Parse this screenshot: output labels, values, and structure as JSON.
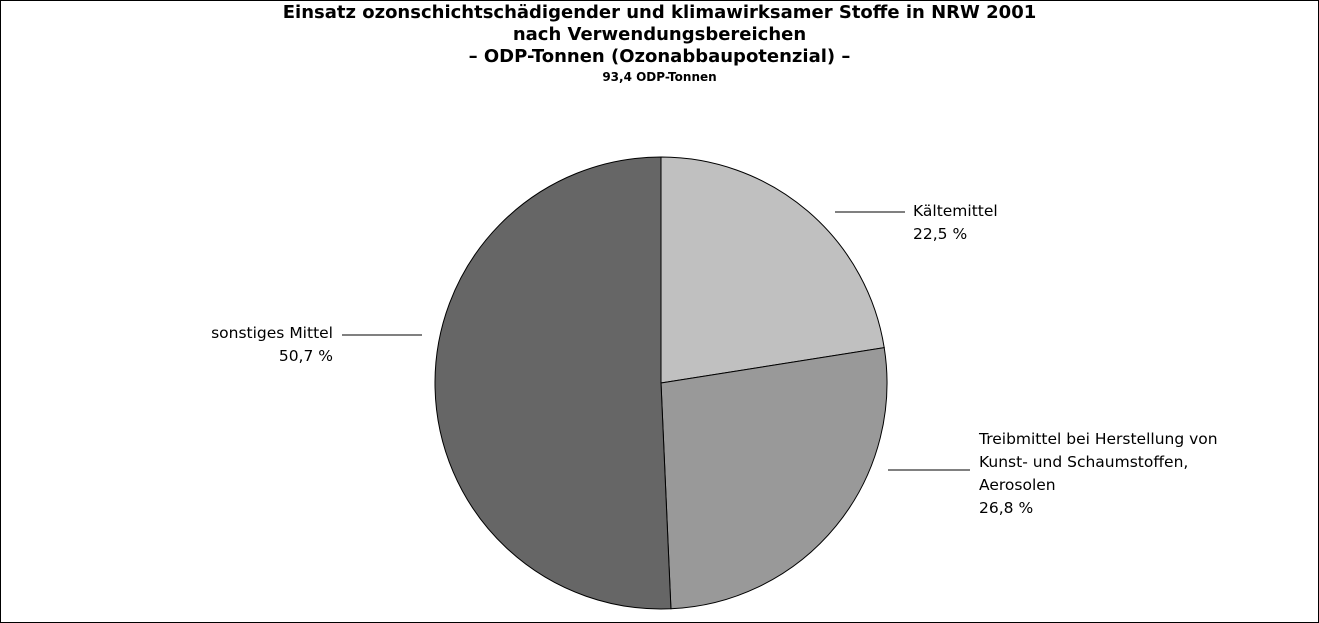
{
  "chart_data": {
    "type": "pie",
    "title": [
      "Einsatz ozonschichtschädigender und klimawirksamer Stoffe in NRW 2001",
      "nach Verwendungsbereichen",
      "– ODP-Tonnen (Ozonabbaupotenzial) –"
    ],
    "subtitle": "93,4 ODP-Tonnen",
    "categories": [
      "Kältemittel",
      "Treibmittel bei Herstellung von Kunst- und Schaumstoffen, Aerosolen",
      "sonstiges Mittel"
    ],
    "values": [
      22.5,
      26.8,
      50.7
    ],
    "value_labels": [
      "22,5 %",
      "26,8 %",
      "50,7 %"
    ],
    "colors": [
      "#c0c0c0",
      "#999999",
      "#666666"
    ]
  }
}
